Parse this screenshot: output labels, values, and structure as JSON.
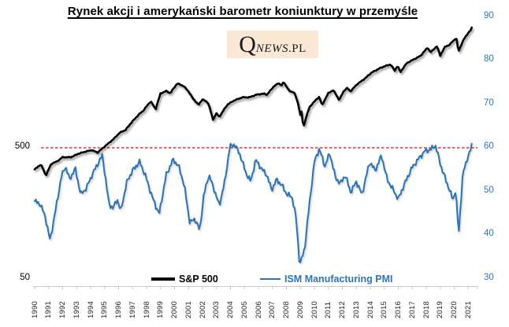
{
  "title": "Rynek akcji i amerykański barometr koniunktury w przemyśle",
  "logo": {
    "q": "Q",
    "news": "NEWS",
    "pl": ".PL"
  },
  "legend": [
    {
      "label": "S&P 500",
      "color": "#000000"
    },
    {
      "label": "ISM Manufacturing PMI",
      "color": "#2E75B6"
    }
  ],
  "axes": {
    "left": {
      "ticks": [
        {
          "label": "500",
          "value": 500
        },
        {
          "label": "50",
          "value": 50
        }
      ],
      "scale": "log",
      "color": "#000000"
    },
    "right": {
      "ticks": [
        90,
        80,
        70,
        60,
        50,
        40,
        30
      ],
      "color": "#2E75B6"
    },
    "x": {
      "years": [
        "1990",
        "1991",
        "1992",
        "1993",
        "1994",
        "1995",
        "1996",
        "1997",
        "1998",
        "1999",
        "2000",
        "2001",
        "2002",
        "2003",
        "2004",
        "2005",
        "2006",
        "2007",
        "2008",
        "2009",
        "2010",
        "2011",
        "2012",
        "2013",
        "2014",
        "2015",
        "2016",
        "2017",
        "2018",
        "2019",
        "2020",
        "2021"
      ]
    }
  },
  "reference_line": {
    "axis": "right",
    "value": 60,
    "color": "#FF0000",
    "style": "dashed"
  },
  "chart_data": {
    "type": "line",
    "title": "Rynek akcji i amerykański barometr koniunktury w przemyśle",
    "x_range": [
      1990,
      2021.3
    ],
    "grid": false,
    "legend_position": "bottom-center",
    "axes": {
      "left": {
        "scale": "log",
        "labeled_values": [
          50,
          500
        ],
        "applies_to": "S&P 500"
      },
      "right": {
        "min": 30,
        "max": 90,
        "tick_step": 10,
        "applies_to": "ISM Manufacturing PMI"
      }
    },
    "series": [
      {
        "name": "S&P 500",
        "axis": "left",
        "color": "#000000",
        "points": [
          [
            1990.0,
            335
          ],
          [
            1990.45,
            365
          ],
          [
            1990.8,
            300
          ],
          [
            1991.2,
            370
          ],
          [
            1991.6,
            385
          ],
          [
            1992.0,
            415
          ],
          [
            1992.6,
            415
          ],
          [
            1993.1,
            440
          ],
          [
            1993.7,
            460
          ],
          [
            1994.1,
            470
          ],
          [
            1994.5,
            450
          ],
          [
            1995.0,
            500
          ],
          [
            1995.6,
            565
          ],
          [
            1996.1,
            640
          ],
          [
            1996.5,
            670
          ],
          [
            1997.0,
            780
          ],
          [
            1997.55,
            900
          ],
          [
            1997.75,
            935
          ],
          [
            1998.3,
            1110
          ],
          [
            1998.65,
            960
          ],
          [
            1999.0,
            1270
          ],
          [
            1999.4,
            1330
          ],
          [
            1999.7,
            1280
          ],
          [
            2000.2,
            1520
          ],
          [
            2000.65,
            1450
          ],
          [
            2001.0,
            1320
          ],
          [
            2001.3,
            1170
          ],
          [
            2001.72,
            1040
          ],
          [
            2002.0,
            1150
          ],
          [
            2002.4,
            1080
          ],
          [
            2002.75,
            800
          ],
          [
            2003.0,
            900
          ],
          [
            2003.2,
            840
          ],
          [
            2003.8,
            1050
          ],
          [
            2004.3,
            1130
          ],
          [
            2004.85,
            1190
          ],
          [
            2005.35,
            1190
          ],
          [
            2005.9,
            1250
          ],
          [
            2006.45,
            1270
          ],
          [
            2006.6,
            1240
          ],
          [
            2007.1,
            1440
          ],
          [
            2007.45,
            1530
          ],
          [
            2007.65,
            1460
          ],
          [
            2007.8,
            1560
          ],
          [
            2008.2,
            1330
          ],
          [
            2008.55,
            1300
          ],
          [
            2008.8,
            1100
          ],
          [
            2009.0,
            870
          ],
          [
            2009.1,
            930
          ],
          [
            2009.2,
            690
          ],
          [
            2009.65,
            1000
          ],
          [
            2010.05,
            1120
          ],
          [
            2010.35,
            1200
          ],
          [
            2010.55,
            1030
          ],
          [
            2011.0,
            1280
          ],
          [
            2011.35,
            1350
          ],
          [
            2011.78,
            1130
          ],
          [
            2012.1,
            1330
          ],
          [
            2012.35,
            1400
          ],
          [
            2012.6,
            1320
          ],
          [
            2013.0,
            1480
          ],
          [
            2013.6,
            1650
          ],
          [
            2014.1,
            1840
          ],
          [
            2014.75,
            2000
          ],
          [
            2015.15,
            2080
          ],
          [
            2015.45,
            2120
          ],
          [
            2015.75,
            1900
          ],
          [
            2015.95,
            2070
          ],
          [
            2016.15,
            1850
          ],
          [
            2016.6,
            2170
          ],
          [
            2017.05,
            2300
          ],
          [
            2017.6,
            2470
          ],
          [
            2018.1,
            2850
          ],
          [
            2018.3,
            2620
          ],
          [
            2018.75,
            2920
          ],
          [
            2019.0,
            2480
          ],
          [
            2019.35,
            2900
          ],
          [
            2019.65,
            2990
          ],
          [
            2019.95,
            3230
          ],
          [
            2020.15,
            3380
          ],
          [
            2020.3,
            2650
          ],
          [
            2020.65,
            3250
          ],
          [
            2020.95,
            3640
          ],
          [
            2021.1,
            3800
          ],
          [
            2021.2,
            3900
          ],
          [
            2021.3,
            4180
          ]
        ]
      },
      {
        "name": "ISM Manufacturing PMI",
        "axis": "right",
        "color": "#2E75B6",
        "points": [
          [
            1990.0,
            47.5
          ],
          [
            1990.4,
            46.8
          ],
          [
            1990.75,
            44
          ],
          [
            1991.1,
            38.5
          ],
          [
            1991.5,
            45.5
          ],
          [
            1991.9,
            53
          ],
          [
            1992.2,
            55.5
          ],
          [
            1992.5,
            52.5
          ],
          [
            1992.9,
            55
          ],
          [
            1993.3,
            49
          ],
          [
            1993.7,
            50.5
          ],
          [
            1994.1,
            53.5
          ],
          [
            1994.5,
            56
          ],
          [
            1994.85,
            58
          ],
          [
            1995.3,
            47
          ],
          [
            1995.6,
            45.8
          ],
          [
            1995.9,
            48
          ],
          [
            1996.15,
            45.2
          ],
          [
            1996.6,
            52
          ],
          [
            1997.0,
            54.5
          ],
          [
            1997.5,
            56.5
          ],
          [
            1997.9,
            53.5
          ],
          [
            1998.4,
            48.5
          ],
          [
            1998.9,
            44.5
          ],
          [
            1999.4,
            53.5
          ],
          [
            1999.9,
            57
          ],
          [
            2000.3,
            55.5
          ],
          [
            2000.7,
            51
          ],
          [
            2001.1,
            42.5
          ],
          [
            2001.45,
            43.5
          ],
          [
            2001.8,
            40.8
          ],
          [
            2002.1,
            49
          ],
          [
            2002.45,
            53.5
          ],
          [
            2002.8,
            50.5
          ],
          [
            2003.2,
            46.5
          ],
          [
            2003.6,
            52
          ],
          [
            2003.95,
            60
          ],
          [
            2004.3,
            60.5
          ],
          [
            2004.7,
            58
          ],
          [
            2005.1,
            54
          ],
          [
            2005.45,
            52
          ],
          [
            2005.8,
            57
          ],
          [
            2006.2,
            55
          ],
          [
            2006.6,
            53.5
          ],
          [
            2006.95,
            50
          ],
          [
            2007.3,
            52.5
          ],
          [
            2007.7,
            51
          ],
          [
            2008.05,
            49
          ],
          [
            2008.4,
            48.5
          ],
          [
            2008.7,
            43.5
          ],
          [
            2008.95,
            32.8
          ],
          [
            2009.3,
            36.5
          ],
          [
            2009.65,
            47
          ],
          [
            2010.0,
            56.5
          ],
          [
            2010.35,
            59.5
          ],
          [
            2010.75,
            55.5
          ],
          [
            2011.1,
            58.5
          ],
          [
            2011.5,
            53
          ],
          [
            2011.85,
            51.5
          ],
          [
            2012.2,
            53.5
          ],
          [
            2012.6,
            49.5
          ],
          [
            2013.0,
            52
          ],
          [
            2013.4,
            49
          ],
          [
            2013.95,
            56.5
          ],
          [
            2014.35,
            54.5
          ],
          [
            2014.8,
            58
          ],
          [
            2015.2,
            52.5
          ],
          [
            2015.65,
            50
          ],
          [
            2016.0,
            48
          ],
          [
            2016.45,
            51.5
          ],
          [
            2016.95,
            55
          ],
          [
            2017.4,
            57
          ],
          [
            2017.9,
            59
          ],
          [
            2018.3,
            59.3
          ],
          [
            2018.65,
            60.3
          ],
          [
            2019.1,
            55
          ],
          [
            2019.5,
            51.5
          ],
          [
            2019.9,
            47.8
          ],
          [
            2020.1,
            50
          ],
          [
            2020.32,
            40
          ],
          [
            2020.6,
            53.5
          ],
          [
            2020.95,
            57.5
          ],
          [
            2021.15,
            59
          ],
          [
            2021.3,
            60.8
          ]
        ]
      }
    ],
    "reference_line": {
      "value": 60,
      "axis": "right",
      "color": "#FF0000",
      "style": "dashed"
    }
  }
}
